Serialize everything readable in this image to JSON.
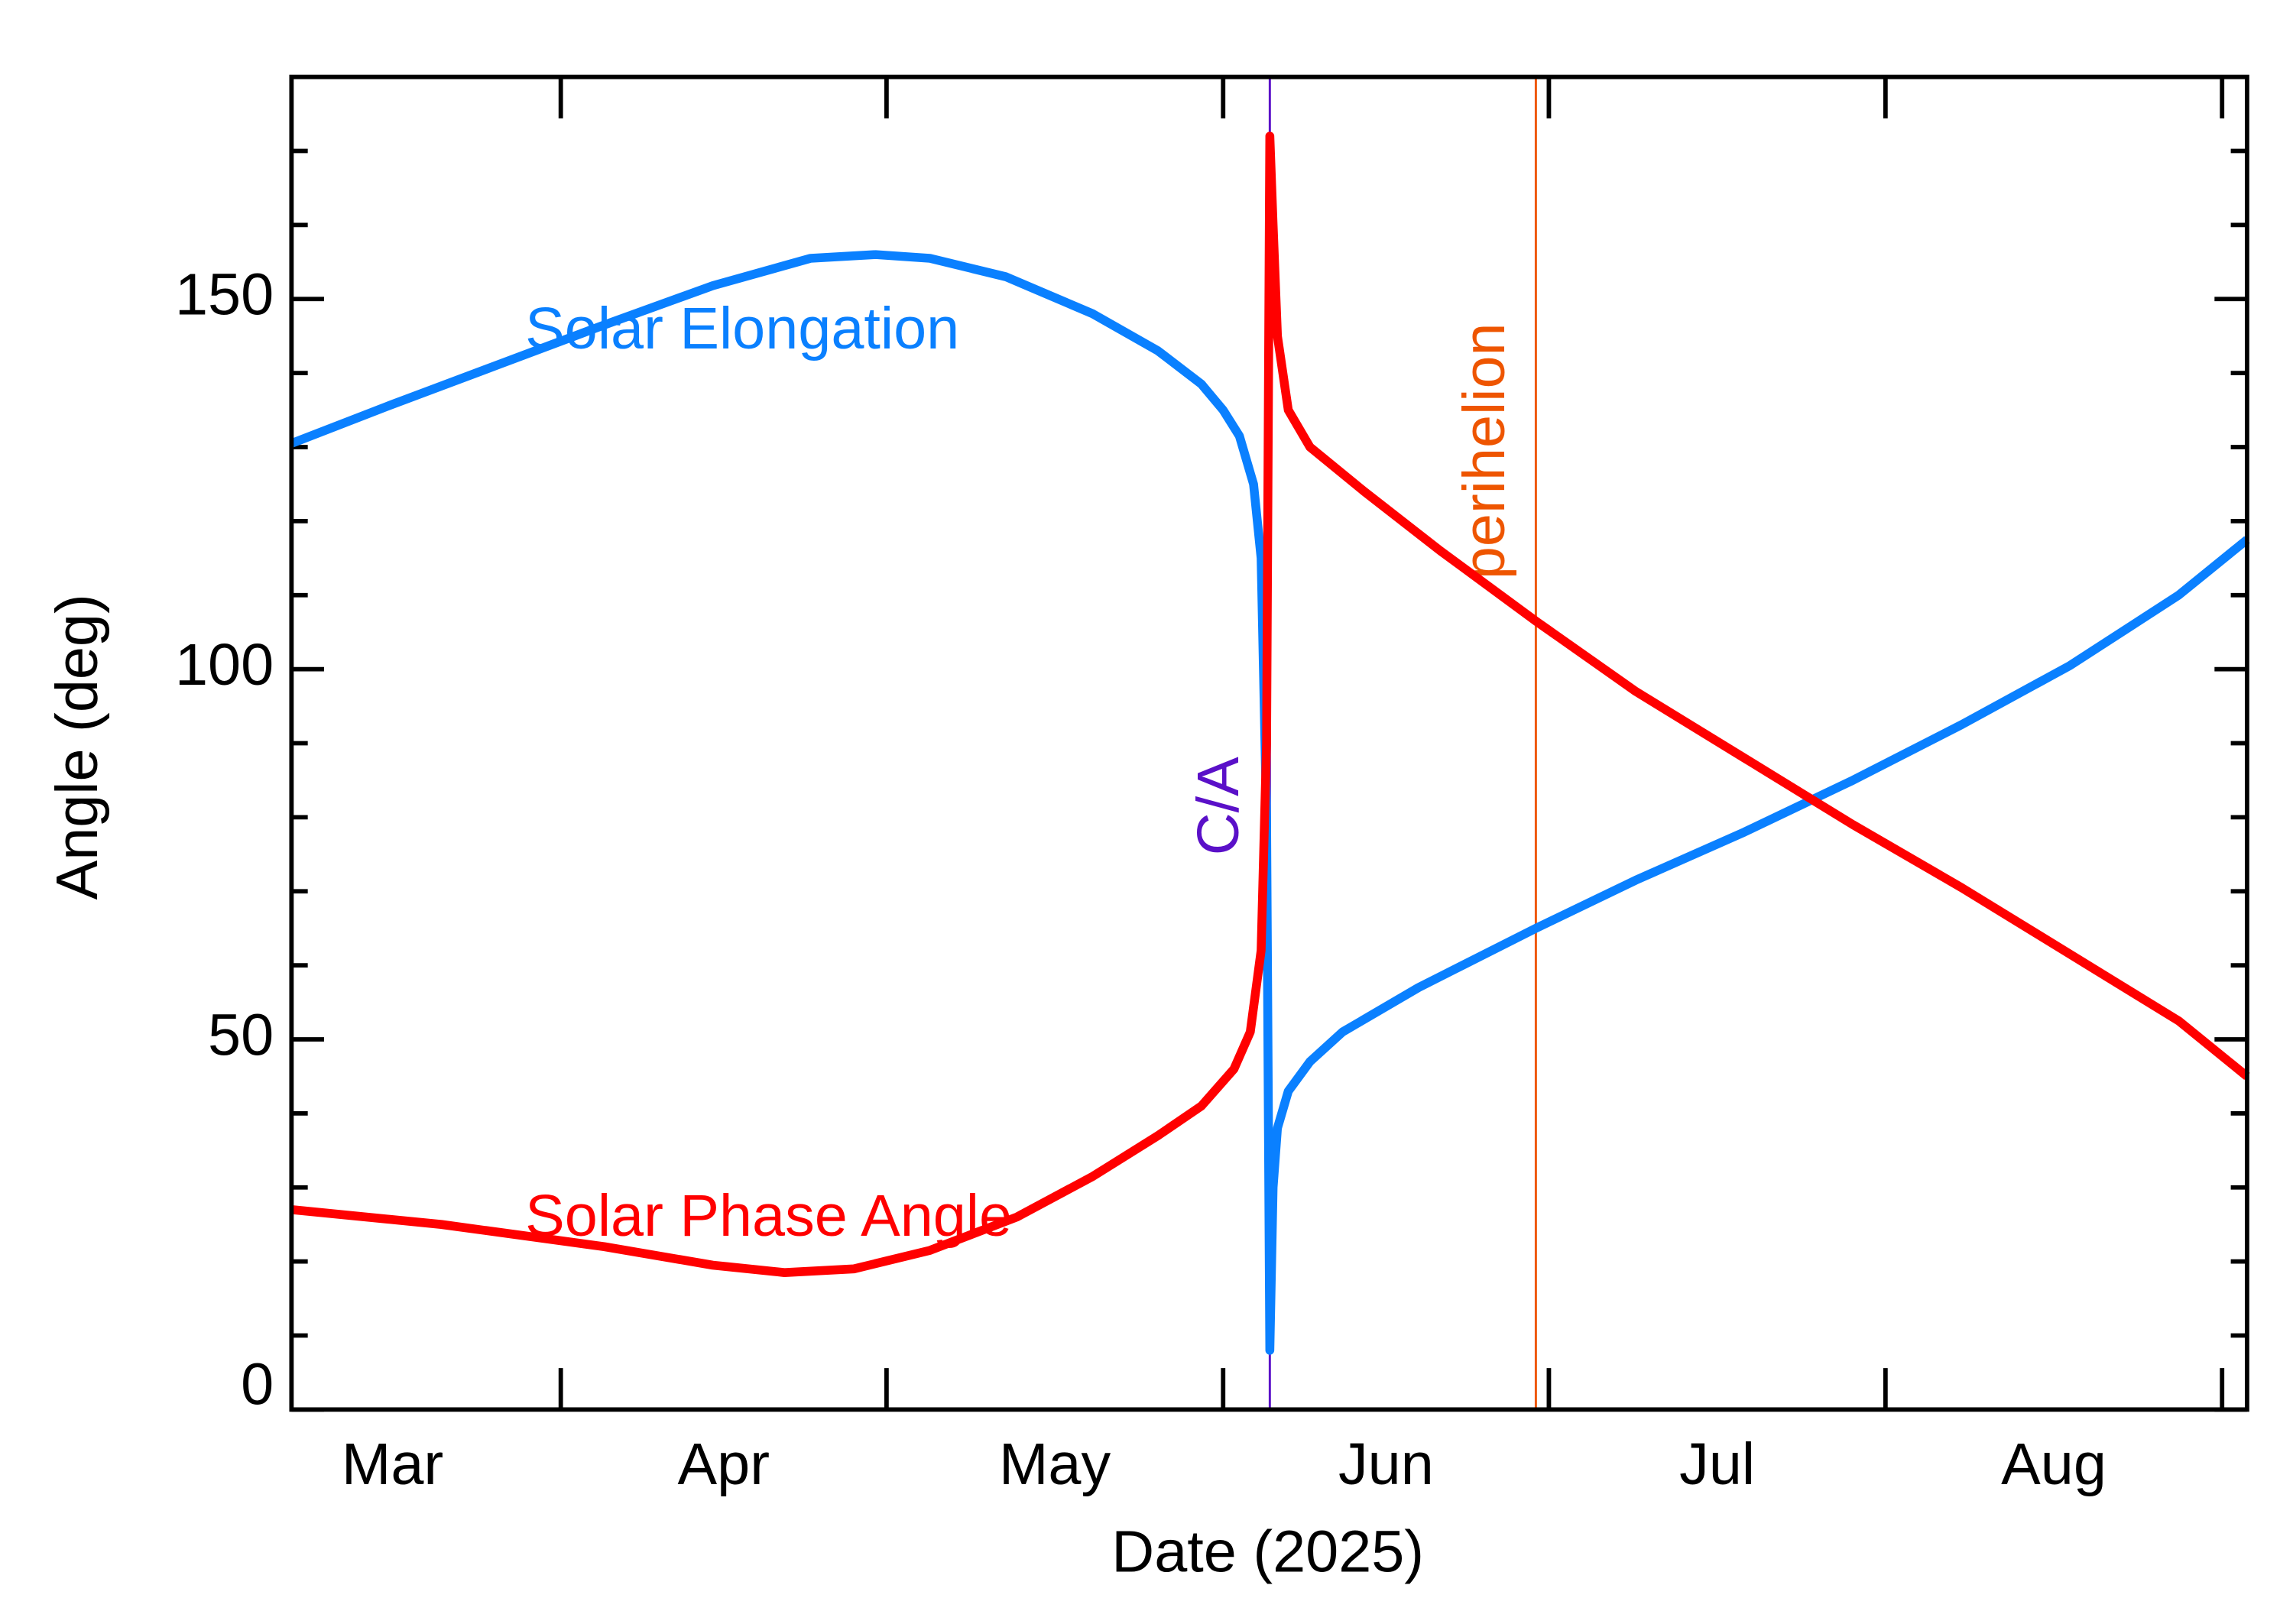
{
  "chart_data": {
    "type": "line",
    "xlabel": "Date (2025)",
    "ylabel": "Angle (deg)",
    "xlim": [
      66.2,
      246.3
    ],
    "ylim": [
      0,
      180
    ],
    "xticks": [
      {
        "value": 75.5,
        "label": "Mar"
      },
      {
        "value": 106,
        "label": "Apr"
      },
      {
        "value": 136.5,
        "label": "May"
      },
      {
        "value": 167,
        "label": "Jun"
      },
      {
        "value": 197.5,
        "label": "Jul"
      },
      {
        "value": 228.5,
        "label": "Aug"
      }
    ],
    "xminorticks": [
      91,
      121,
      152,
      182,
      213,
      244
    ],
    "yticks": [
      0,
      50,
      100,
      150
    ],
    "yminorticks": [
      10,
      20,
      30,
      40,
      60,
      70,
      80,
      90,
      110,
      120,
      130,
      140,
      160,
      170
    ],
    "series": [
      {
        "name": "Solar Elongation",
        "color": "#0a80ff",
        "x": [
          66.2,
          75,
          85,
          95,
          105,
          114,
          120,
          125,
          132,
          140,
          146,
          150,
          152,
          153.5,
          154.8,
          155.5,
          156,
          156.3,
          156.6,
          157,
          158,
          160,
          163,
          170,
          180.8,
          190,
          200,
          210,
          220,
          230,
          240,
          246.3
        ],
        "values": [
          130.5,
          135.5,
          141,
          146.5,
          151.8,
          155.5,
          156,
          155.5,
          153,
          148,
          143,
          138.5,
          135,
          131.5,
          125,
          115,
          80,
          8,
          30,
          38,
          43,
          47,
          51,
          57,
          65,
          71.5,
          78,
          85,
          92.5,
          100.5,
          110,
          117.5
        ]
      },
      {
        "name": "Solar Phase Angle",
        "color": "#ff0000",
        "x": [
          66.2,
          80,
          95,
          105,
          111.6,
          118,
          125,
          133,
          140,
          146,
          150,
          153,
          154.5,
          155.5,
          156,
          156.3,
          156.6,
          157,
          158,
          160,
          165,
          172,
          180.8,
          190,
          200,
          210,
          220,
          230,
          240,
          246.3
        ],
        "values": [
          27,
          25,
          22,
          19.5,
          18.5,
          19,
          21.5,
          26,
          31.5,
          37,
          41,
          46,
          51,
          62,
          90,
          172,
          160,
          145,
          135,
          130,
          124,
          116,
          106.5,
          97,
          88,
          79,
          70.5,
          61.5,
          52.5,
          45
        ]
      }
    ],
    "vlines": [
      {
        "x": 156.3,
        "label": "C/A",
        "color": "#5a10c8"
      },
      {
        "x": 180.8,
        "label": "perihelion",
        "color": "#ee5500"
      }
    ]
  }
}
